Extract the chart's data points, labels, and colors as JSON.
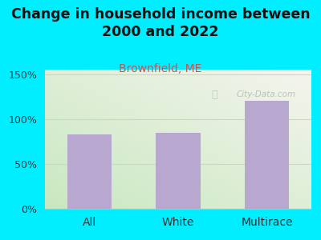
{
  "title": "Change in household income between\n2000 and 2022",
  "subtitle": "Brownfield, ME",
  "categories": [
    "All",
    "White",
    "Multirace"
  ],
  "values": [
    83,
    85,
    120
  ],
  "bar_color": "#b8a8d0",
  "title_fontsize": 12.5,
  "subtitle_fontsize": 10,
  "subtitle_color": "#c05858",
  "title_color": "#111111",
  "bg_color": "#00eeff",
  "plot_bg_topleft": "#c8e8c0",
  "plot_bg_bottomright": "#f5f5ee",
  "ylabel_ticks": [
    0,
    50,
    100,
    150
  ],
  "ylim": [
    0,
    155
  ],
  "grid_color": "#e8c8c8",
  "watermark": "City-Data.com",
  "tick_label_fontsize": 9,
  "xlabel_fontsize": 10,
  "bar_width": 0.5
}
